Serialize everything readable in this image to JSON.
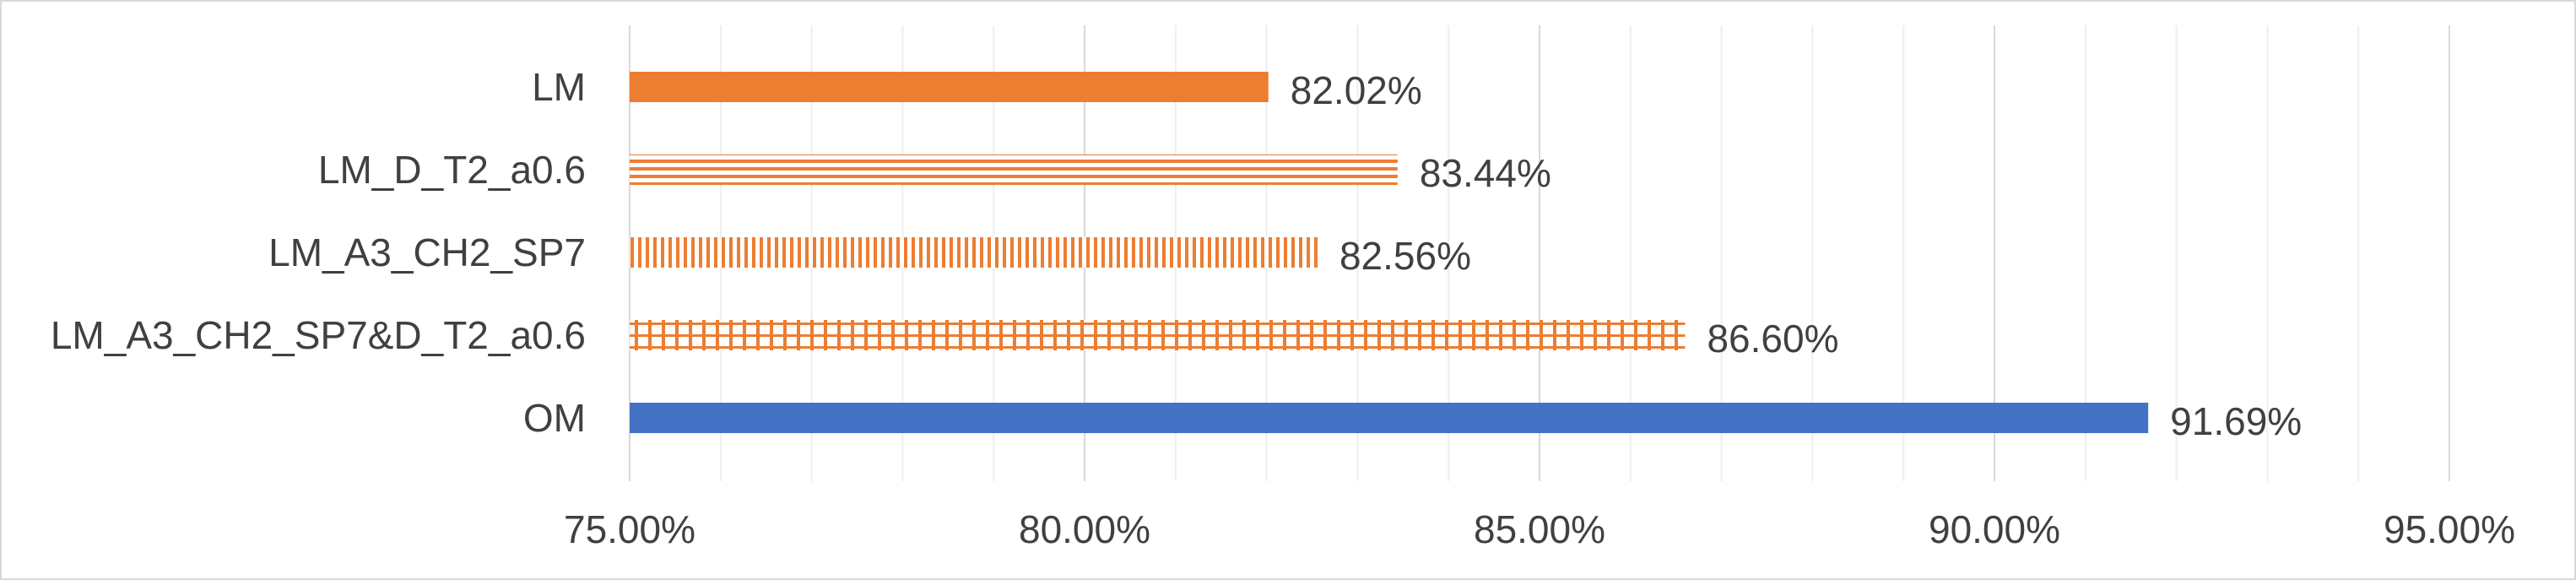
{
  "chart_data": {
    "type": "bar",
    "orientation": "horizontal",
    "categories": [
      "LM",
      "LM_D_T2_a0.6",
      "LM_A3_CH2_SP7",
      "LM_A3_CH2_SP7&D_T2_a0.6",
      "OM"
    ],
    "values": [
      82.02,
      83.44,
      82.56,
      86.6,
      91.69
    ],
    "data_labels": [
      "82.02%",
      "83.44%",
      "82.56%",
      "86.60%",
      "91.69%"
    ],
    "bar_colors": [
      "#ED7D31",
      "#ED7D31",
      "#ED7D31",
      "#ED7D31",
      "#4472C4"
    ],
    "bar_patterns": [
      "solid",
      "horizontal-lines",
      "vertical-lines",
      "grid",
      "solid"
    ],
    "xlim": [
      75,
      95
    ],
    "x_ticks": [
      75,
      80,
      85,
      90,
      95
    ],
    "x_tick_labels": [
      "75.00%",
      "80.00%",
      "85.00%",
      "90.00%",
      "95.00%"
    ],
    "grid": {
      "major": true,
      "minor": true
    },
    "legend": "none",
    "title": "",
    "xlabel": "",
    "ylabel": ""
  }
}
